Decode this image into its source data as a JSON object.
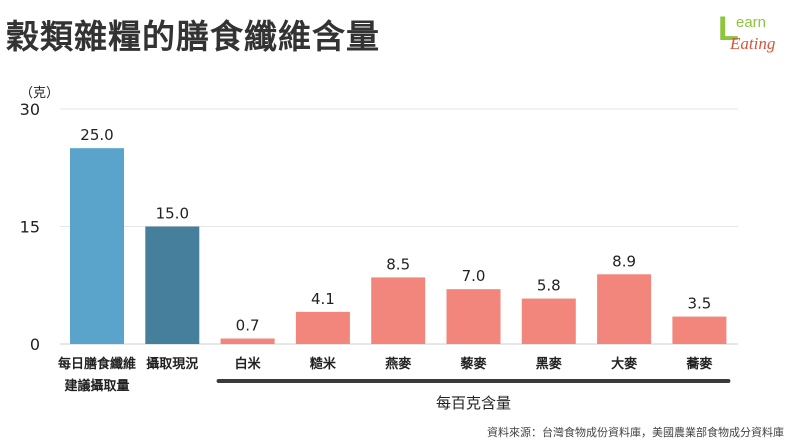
{
  "title": "穀類雜糧的膳食纖維含量",
  "logo": {
    "text_top": "Learn",
    "text_bottom": "Eating"
  },
  "unit_label": "（克）",
  "source": "資料來源：台灣食物成份資料庫，美國農業部食物成分資料庫",
  "colors": {
    "recommended": "#5aa4cc",
    "current": "#457f9b",
    "grains": "#f2867c",
    "bracket": "#3a3a3a"
  },
  "chart_data": {
    "type": "bar",
    "categories": [
      [
        "每日膳食纖維",
        "建議攝取量"
      ],
      [
        "攝取現況"
      ],
      [
        "白米"
      ],
      [
        "糙米"
      ],
      [
        "燕麥"
      ],
      [
        "藜麥"
      ],
      [
        "黑麥"
      ],
      [
        "大麥"
      ],
      [
        "蕎麥"
      ]
    ],
    "values": [
      25.0,
      15.0,
      0.7,
      4.1,
      8.5,
      7.0,
      5.8,
      8.9,
      3.5
    ],
    "value_labels": [
      "25.0",
      "15.0",
      "0.7",
      "4.1",
      "8.5",
      "7.0",
      "5.8",
      "8.9",
      "3.5"
    ],
    "bar_colors": [
      "recommended",
      "current",
      "grains",
      "grains",
      "grains",
      "grains",
      "grains",
      "grains",
      "grains"
    ],
    "ylim": [
      0,
      30
    ],
    "yticks": [
      0,
      15,
      30
    ],
    "ylabel": "（克）",
    "group_label": "每百克含量",
    "grid": true
  }
}
